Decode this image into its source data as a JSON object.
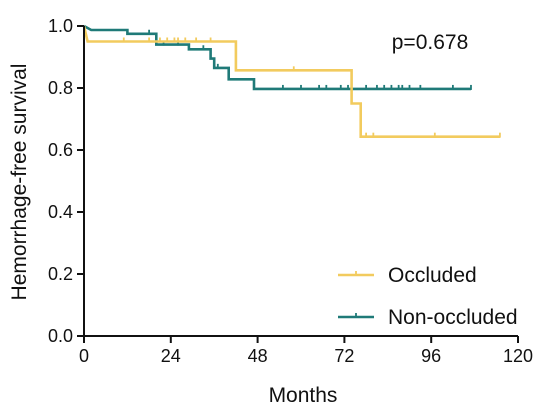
{
  "chart_data": {
    "type": "line",
    "step": true,
    "title": "",
    "xlabel": "Months",
    "ylabel": "Hemorrhage-free survival",
    "xlim": [
      0,
      120
    ],
    "ylim": [
      0,
      1.0
    ],
    "xticks": [
      0,
      24,
      48,
      72,
      96,
      120
    ],
    "yticks": [
      0.0,
      0.2,
      0.4,
      0.6,
      0.8,
      1.0
    ],
    "xtick_labels": [
      "0",
      "24",
      "48",
      "72",
      "96",
      "120"
    ],
    "ytick_labels": [
      "0.0",
      "0.2",
      "0.4",
      "0.6",
      "0.8",
      "1.0"
    ],
    "grid": false,
    "legend_position": "bottom-right",
    "annotation": "p=0.678",
    "series": [
      {
        "name": "Occluded",
        "color": "#F2CB5E",
        "steps": [
          [
            0,
            1.0
          ],
          [
            1,
            0.95
          ],
          [
            42,
            0.95
          ],
          [
            42,
            0.857
          ],
          [
            74,
            0.857
          ],
          [
            74,
            0.75
          ],
          [
            76.5,
            0.75
          ],
          [
            76.5,
            0.643
          ],
          [
            115,
            0.643
          ]
        ],
        "censors": [
          [
            11,
            0.95
          ],
          [
            18,
            0.95
          ],
          [
            21,
            0.95
          ],
          [
            23,
            0.95
          ],
          [
            25,
            0.95
          ],
          [
            26,
            0.95
          ],
          [
            28,
            0.95
          ],
          [
            31,
            0.95
          ],
          [
            35,
            0.95
          ],
          [
            58,
            0.857
          ],
          [
            78,
            0.643
          ],
          [
            80,
            0.643
          ],
          [
            97,
            0.643
          ],
          [
            115,
            0.643
          ]
        ]
      },
      {
        "name": "Non-occluded",
        "color": "#1F7A78",
        "steps": [
          [
            0,
            1.0
          ],
          [
            2,
            0.987
          ],
          [
            12,
            0.987
          ],
          [
            12,
            0.975
          ],
          [
            20,
            0.975
          ],
          [
            20,
            0.94
          ],
          [
            29,
            0.94
          ],
          [
            29,
            0.925
          ],
          [
            35,
            0.925
          ],
          [
            35,
            0.895
          ],
          [
            36,
            0.895
          ],
          [
            36,
            0.865
          ],
          [
            40,
            0.865
          ],
          [
            40,
            0.828
          ],
          [
            47,
            0.828
          ],
          [
            47,
            0.797
          ],
          [
            107,
            0.797
          ]
        ],
        "censors": [
          [
            18,
            0.975
          ],
          [
            22,
            0.94
          ],
          [
            26,
            0.94
          ],
          [
            33,
            0.925
          ],
          [
            37,
            0.865
          ],
          [
            55,
            0.797
          ],
          [
            60,
            0.797
          ],
          [
            65,
            0.797
          ],
          [
            67,
            0.797
          ],
          [
            71,
            0.797
          ],
          [
            73,
            0.797
          ],
          [
            78,
            0.797
          ],
          [
            81,
            0.797
          ],
          [
            83,
            0.797
          ],
          [
            85,
            0.797
          ],
          [
            87,
            0.797
          ],
          [
            88,
            0.797
          ],
          [
            90,
            0.797
          ],
          [
            93,
            0.797
          ],
          [
            102,
            0.797
          ],
          [
            107,
            0.797
          ]
        ]
      }
    ]
  }
}
